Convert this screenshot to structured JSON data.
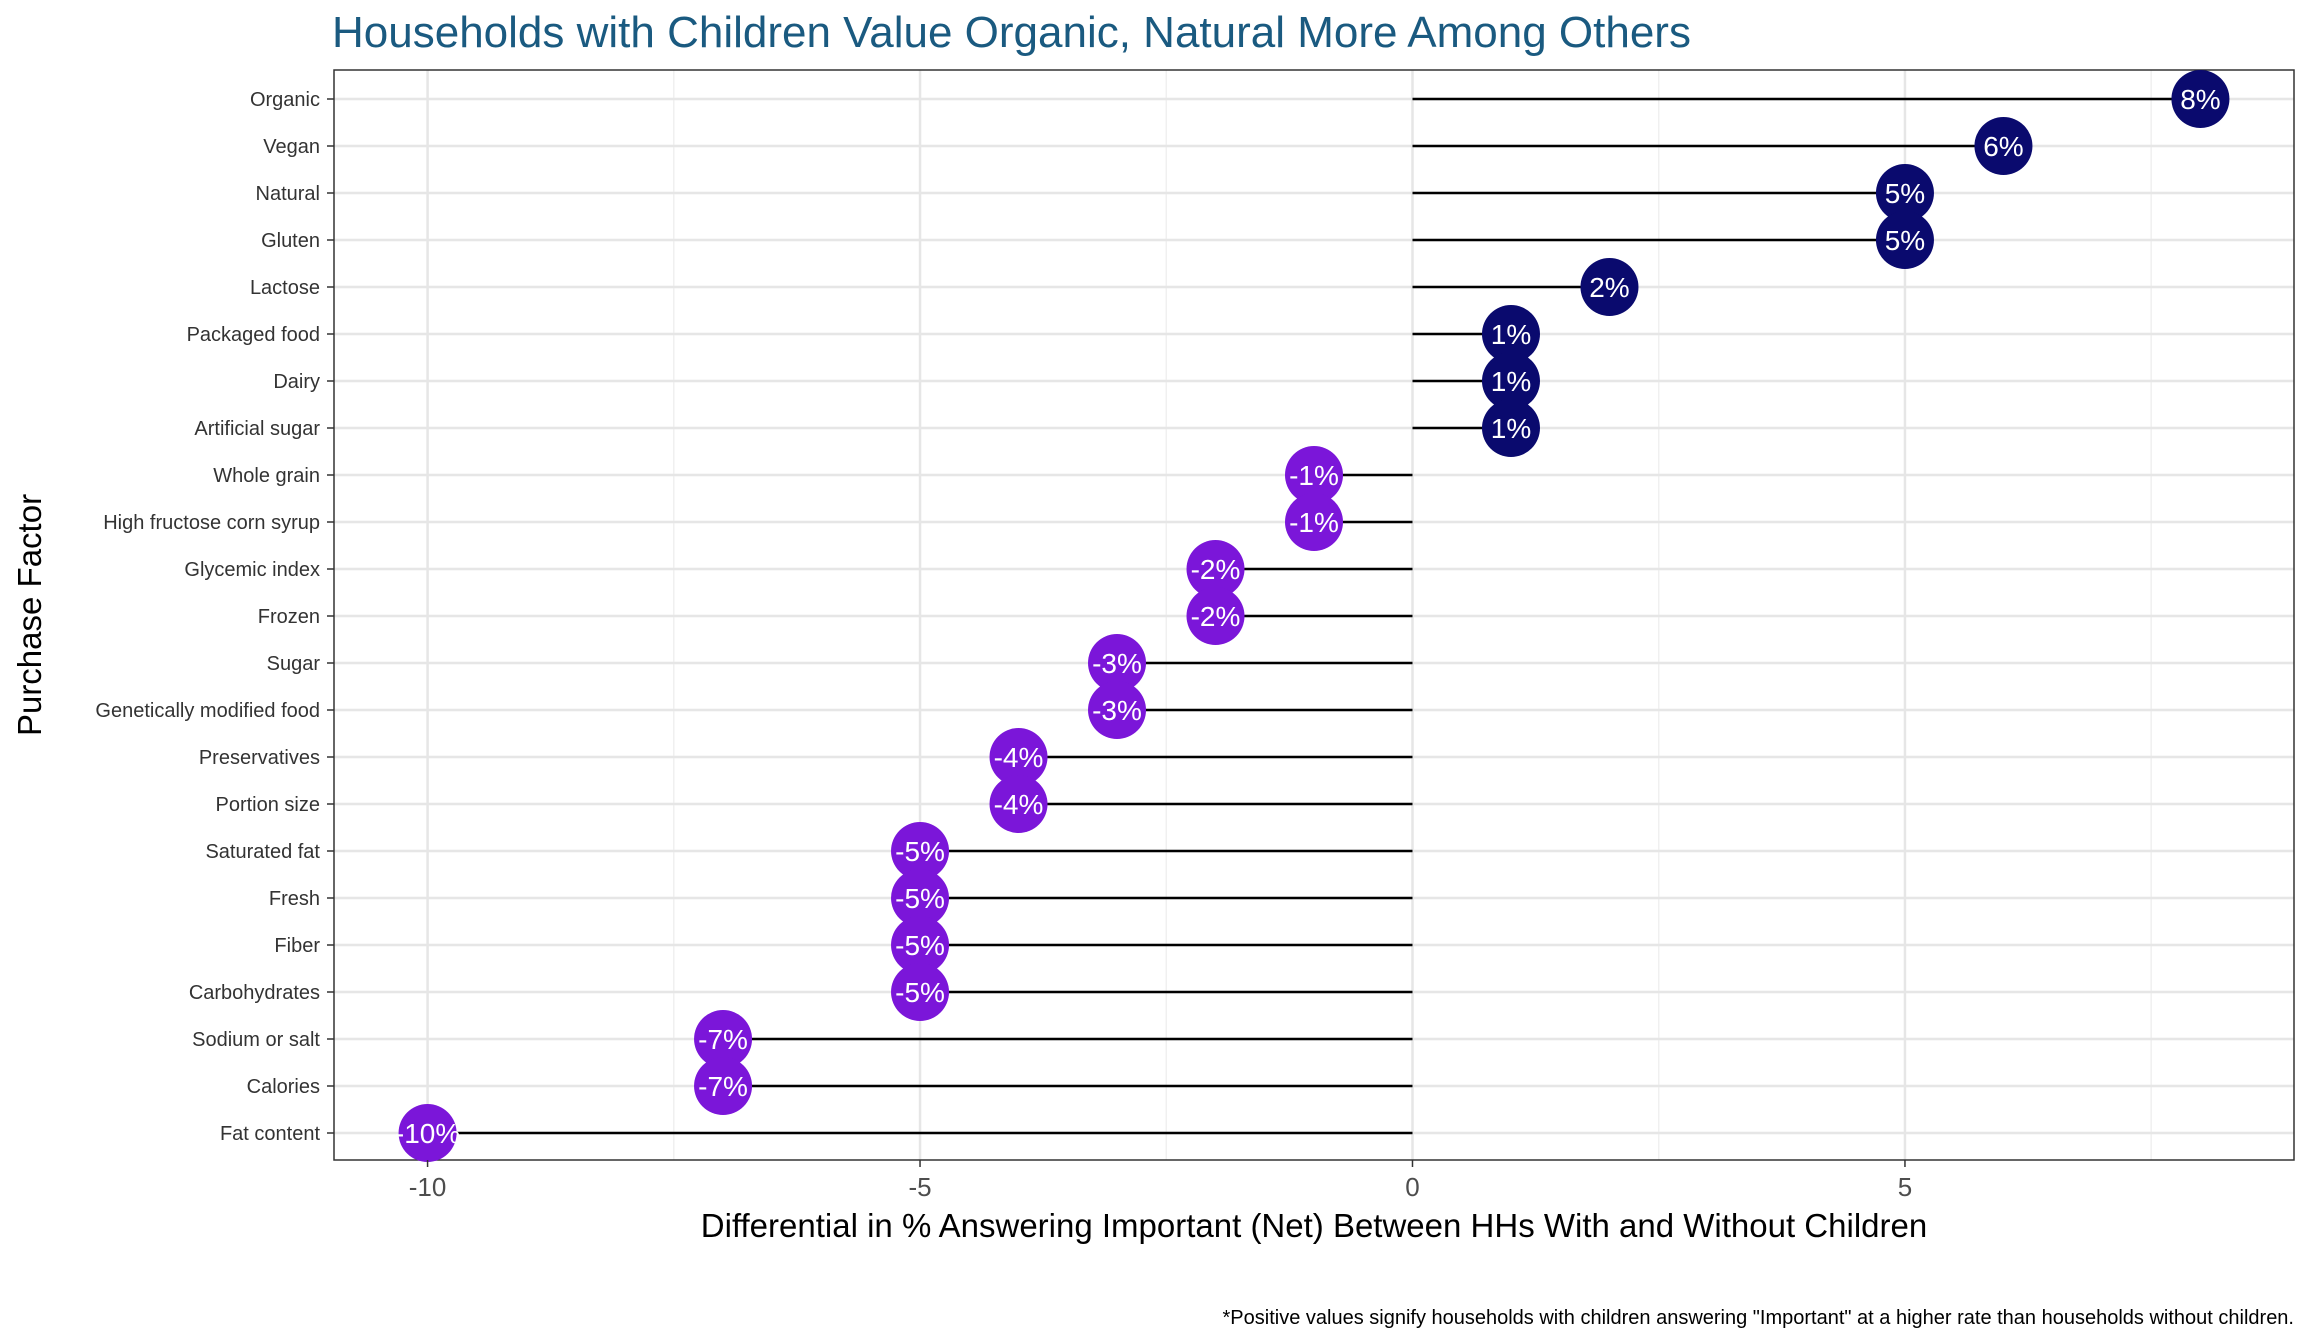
{
  "chart_data": {
    "type": "lollipop",
    "title": "Households with Children Value Organic, Natural More Among Others",
    "xlabel": "Differential in % Answering Important (Net) Between HHs With and Without Children",
    "ylabel": "Purchase Factor",
    "caption": "*Positive values signify households with children answering \"Important\" at a higher rate than households without children.",
    "xlim": [
      -10.95,
      8.95
    ],
    "xticks": [
      -10,
      -5,
      0,
      5
    ],
    "grid": true,
    "colors": {
      "positive": "#0a0a6e",
      "negative": "#7b16d9",
      "title": "#1a5a80"
    },
    "categories": [
      "Organic",
      "Vegan",
      "Natural",
      "Gluten",
      "Lactose",
      "Packaged food",
      "Dairy",
      "Artificial sugar",
      "Whole grain",
      "High fructose corn syrup",
      "Glycemic index",
      "Frozen",
      "Sugar",
      "Genetically modified food",
      "Preservatives",
      "Portion size",
      "Saturated fat",
      "Fresh",
      "Fiber",
      "Carbohydrates",
      "Sodium or salt",
      "Calories",
      "Fat content"
    ],
    "values": [
      8,
      6,
      5,
      5,
      2,
      1,
      1,
      1,
      -1,
      -1,
      -2,
      -2,
      -3,
      -3,
      -4,
      -4,
      -5,
      -5,
      -5,
      -5,
      -7,
      -7,
      -10
    ],
    "labels": [
      "8%",
      "6%",
      "5%",
      "5%",
      "2%",
      "1%",
      "1%",
      "1%",
      "-1%",
      "-1%",
      "-2%",
      "-2%",
      "-3%",
      "-3%",
      "-4%",
      "-4%",
      "-5%",
      "-5%",
      "-5%",
      "-5%",
      "-7%",
      "-7%",
      "-10%"
    ]
  }
}
